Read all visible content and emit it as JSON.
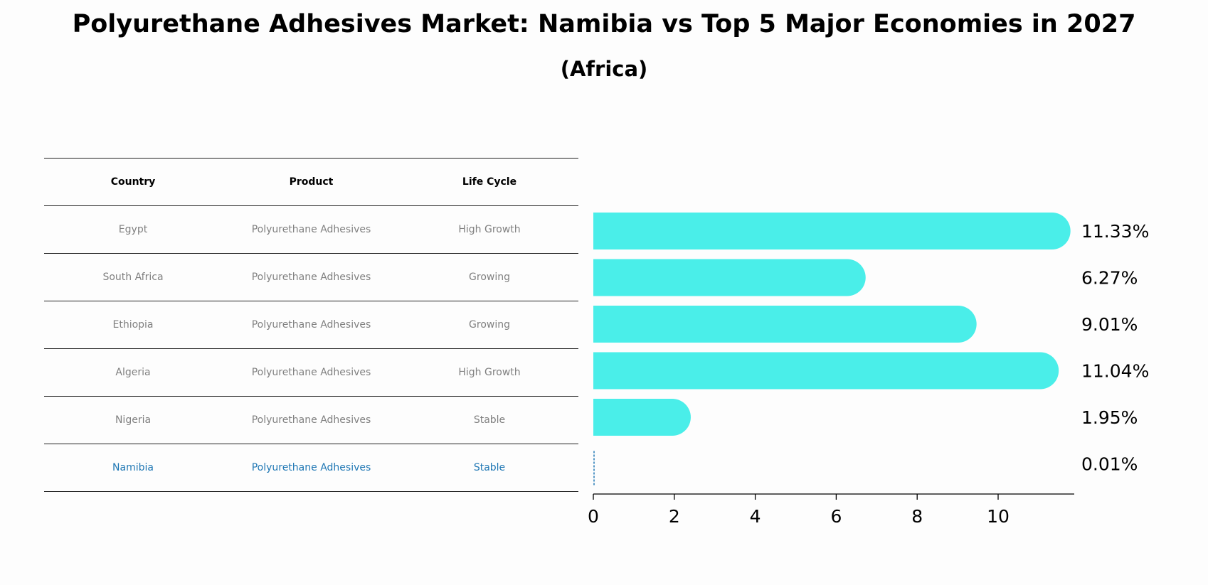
{
  "title": "Polyurethane Adhesives Market: Namibia vs Top 5 Major Economies in 2027",
  "subtitle": "(Africa)",
  "colors": {
    "bar": "#4aeee9",
    "highlight": "#1f77b4",
    "muted": "#808080"
  },
  "table": {
    "headers": [
      "Country",
      "Product",
      "Life Cycle"
    ],
    "rows": [
      [
        "Egypt",
        "Polyurethane Adhesives",
        "High Growth"
      ],
      [
        "South Africa",
        "Polyurethane Adhesives",
        "Growing"
      ],
      [
        "Ethiopia",
        "Polyurethane Adhesives",
        "Growing"
      ],
      [
        "Algeria",
        "Polyurethane Adhesives",
        "High Growth"
      ],
      [
        "Nigeria",
        "Polyurethane Adhesives",
        "Stable"
      ],
      [
        "Namibia",
        "Polyurethane Adhesives",
        "Stable"
      ]
    ],
    "highlight_row": 5
  },
  "chart_data": {
    "type": "bar",
    "orientation": "horizontal",
    "categories": [
      "Egypt",
      "South Africa",
      "Ethiopia",
      "Algeria",
      "Nigeria",
      "Namibia"
    ],
    "values": [
      11.33,
      6.27,
      9.01,
      11.04,
      1.95,
      0.01
    ],
    "value_labels": [
      "11.33%",
      "6.27%",
      "9.01%",
      "11.04%",
      "1.95%",
      "0.01%"
    ],
    "xlim": [
      0,
      11.9
    ],
    "xticks": [
      0,
      2,
      4,
      6,
      8,
      10
    ],
    "xtick_labels": [
      "0",
      "2",
      "4",
      "6",
      "8",
      "10"
    ],
    "grid": false,
    "highlight_category": "Namibia"
  }
}
